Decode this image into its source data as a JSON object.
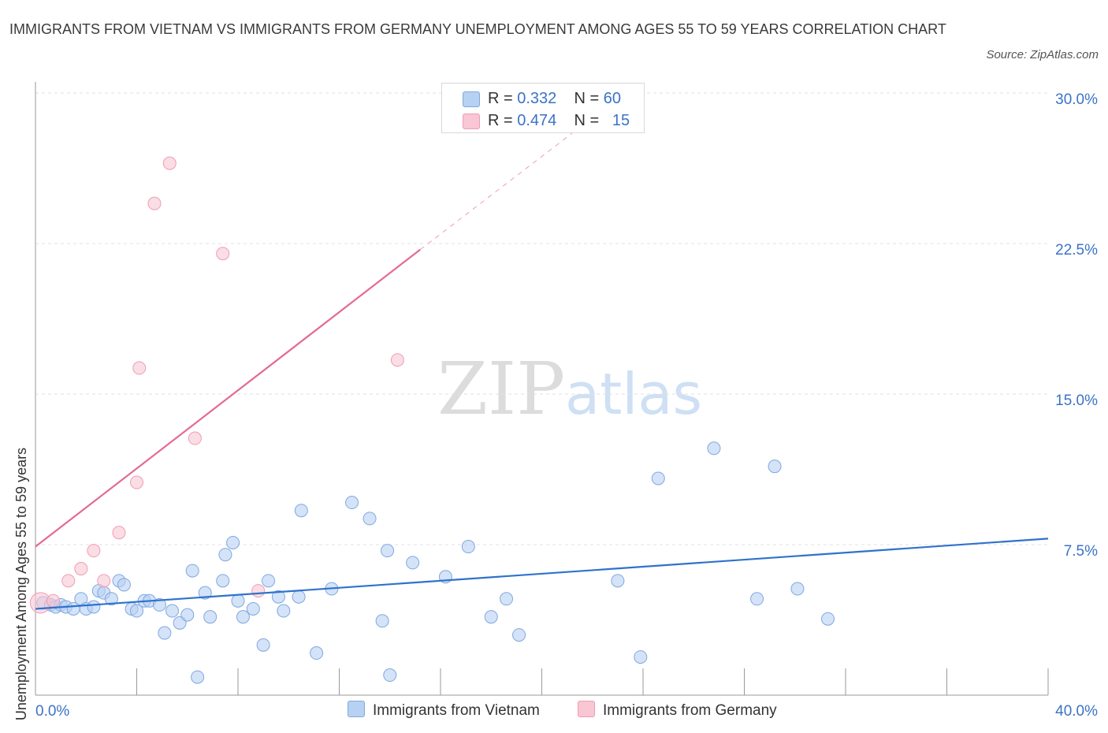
{
  "header": {
    "title": "IMMIGRANTS FROM VIETNAM VS IMMIGRANTS FROM GERMANY UNEMPLOYMENT AMONG AGES 55 TO 59 YEARS CORRELATION CHART",
    "source": "Source: ZipAtlas.com"
  },
  "watermark": {
    "zip": "ZIP",
    "atlas": "atlas"
  },
  "legend": {
    "vietnam": {
      "r_label": "R = ",
      "r_value": "0.332",
      "n_label": "N = ",
      "n_value": "60"
    },
    "germany": {
      "r_label": "R = ",
      "r_value": "0.474",
      "n_label": "N = ",
      "n_value": "15"
    }
  },
  "colors": {
    "vietnam_fill": "#b7d1f3",
    "vietnam_stroke": "#7fa8e0",
    "vietnam_line": "#2f72cc",
    "germany_fill": "#f9c6d3",
    "germany_stroke": "#ee9db3",
    "germany_line": "#e46a92",
    "axis_label": "#3b73c6",
    "grid": "#e2e2e2"
  },
  "chart_data": {
    "type": "scatter",
    "title": "IMMIGRANTS FROM VIETNAM VS IMMIGRANTS FROM GERMANY UNEMPLOYMENT AMONG AGES 55 TO 59 YEARS CORRELATION CHART",
    "xlabel": "",
    "ylabel": "Unemployment Among Ages 55 to 59 years",
    "xlim": [
      0,
      40
    ],
    "ylim": [
      0,
      30
    ],
    "x_tick_labels": [
      "0.0%",
      "40.0%"
    ],
    "y_ticks": [
      7.5,
      15.0,
      22.5,
      30.0
    ],
    "y_tick_labels": [
      "7.5%",
      "15.0%",
      "22.5%",
      "30.0%"
    ],
    "grid": true,
    "legend_position": "bottom",
    "series": [
      {
        "name": "Immigrants from Vietnam",
        "R": 0.332,
        "N": 60,
        "trend": {
          "x": [
            0,
            40
          ],
          "y": [
            4.3,
            7.8
          ]
        },
        "points": [
          [
            0.3,
            4.6
          ],
          [
            0.6,
            4.5
          ],
          [
            0.8,
            4.4
          ],
          [
            1.0,
            4.5
          ],
          [
            1.2,
            4.4
          ],
          [
            1.5,
            4.3
          ],
          [
            1.8,
            4.8
          ],
          [
            2.0,
            4.3
          ],
          [
            2.3,
            4.4
          ],
          [
            2.5,
            5.2
          ],
          [
            2.7,
            5.1
          ],
          [
            3.0,
            4.8
          ],
          [
            3.3,
            5.7
          ],
          [
            3.5,
            5.5
          ],
          [
            3.8,
            4.3
          ],
          [
            4.0,
            4.2
          ],
          [
            4.3,
            4.7
          ],
          [
            4.5,
            4.7
          ],
          [
            4.9,
            4.5
          ],
          [
            5.1,
            3.1
          ],
          [
            5.4,
            4.2
          ],
          [
            5.7,
            3.6
          ],
          [
            6.0,
            4.0
          ],
          [
            6.2,
            6.2
          ],
          [
            6.4,
            0.9
          ],
          [
            6.7,
            5.1
          ],
          [
            6.9,
            3.9
          ],
          [
            7.4,
            5.7
          ],
          [
            7.5,
            7.0
          ],
          [
            7.8,
            7.6
          ],
          [
            8.0,
            4.7
          ],
          [
            8.2,
            3.9
          ],
          [
            8.6,
            4.3
          ],
          [
            9.0,
            2.5
          ],
          [
            9.2,
            5.7
          ],
          [
            9.6,
            4.9
          ],
          [
            9.8,
            4.2
          ],
          [
            10.4,
            4.9
          ],
          [
            10.5,
            9.2
          ],
          [
            11.1,
            2.1
          ],
          [
            11.7,
            5.3
          ],
          [
            12.5,
            9.6
          ],
          [
            13.2,
            8.8
          ],
          [
            13.7,
            3.7
          ],
          [
            13.9,
            7.2
          ],
          [
            14.0,
            1.0
          ],
          [
            14.9,
            6.6
          ],
          [
            16.2,
            5.9
          ],
          [
            17.1,
            7.4
          ],
          [
            18.0,
            3.9
          ],
          [
            18.6,
            4.8
          ],
          [
            19.1,
            3.0
          ],
          [
            23.0,
            5.7
          ],
          [
            23.9,
            1.9
          ],
          [
            24.6,
            10.8
          ],
          [
            26.8,
            12.3
          ],
          [
            28.5,
            4.8
          ],
          [
            29.2,
            11.4
          ],
          [
            30.1,
            5.3
          ],
          [
            31.3,
            3.8
          ]
        ]
      },
      {
        "name": "Immigrants from Germany",
        "R": 0.474,
        "N": 15,
        "trend": {
          "x": [
            0,
            15.2
          ],
          "y": [
            7.4,
            22.2
          ]
        },
        "trend_dashed": {
          "x": [
            15.2,
            21.2
          ],
          "y": [
            22.2,
            28.0
          ]
        },
        "points": [
          [
            0.2,
            4.6
          ],
          [
            0.7,
            4.7
          ],
          [
            1.3,
            5.7
          ],
          [
            1.8,
            6.3
          ],
          [
            2.3,
            7.2
          ],
          [
            2.7,
            5.7
          ],
          [
            3.3,
            8.1
          ],
          [
            4.0,
            10.6
          ],
          [
            4.1,
            16.3
          ],
          [
            4.7,
            24.5
          ],
          [
            5.3,
            26.5
          ],
          [
            6.3,
            12.8
          ],
          [
            7.4,
            22.0
          ],
          [
            8.8,
            5.2
          ],
          [
            14.3,
            16.7
          ]
        ]
      }
    ]
  },
  "bottom_legend": {
    "vietnam": "Immigrants from Vietnam",
    "germany": "Immigrants from Germany"
  }
}
